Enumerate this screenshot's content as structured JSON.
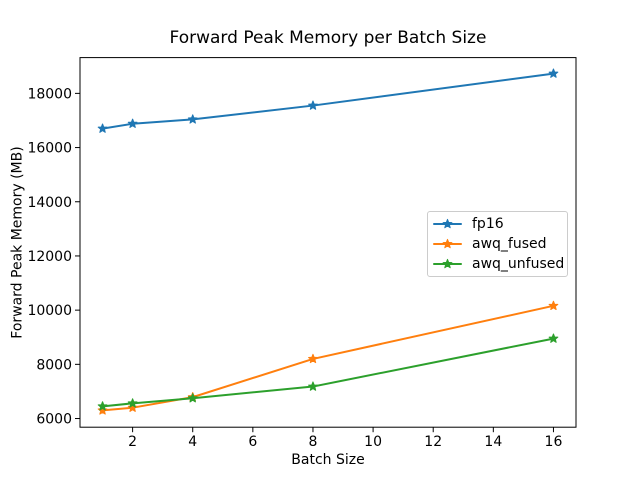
{
  "chart_data": {
    "type": "line",
    "title": "Forward Peak Memory per Batch Size",
    "xlabel": "Batch Size",
    "ylabel": "Forward Peak Memory (MB)",
    "x": [
      1,
      2,
      4,
      8,
      16
    ],
    "series": [
      {
        "name": "fp16",
        "color": "#1f77b4",
        "values": [
          16700,
          16880,
          17040,
          17550,
          18730
        ]
      },
      {
        "name": "awq_fused",
        "color": "#ff7f0e",
        "values": [
          6300,
          6400,
          6790,
          8200,
          10160
        ]
      },
      {
        "name": "awq_unfused",
        "color": "#2ca02c",
        "values": [
          6450,
          6560,
          6750,
          7180,
          8950
        ]
      }
    ],
    "xticks": [
      2,
      4,
      6,
      8,
      10,
      12,
      14,
      16
    ],
    "yticks": [
      6000,
      8000,
      10000,
      12000,
      14000,
      16000,
      18000
    ],
    "xlim": [
      0.25,
      16.75
    ],
    "ylim": [
      5680,
      19320
    ],
    "grid": false,
    "marker": "star",
    "legend_position": "center-right",
    "spine_color": "#000000",
    "background_color": "#ffffff"
  }
}
